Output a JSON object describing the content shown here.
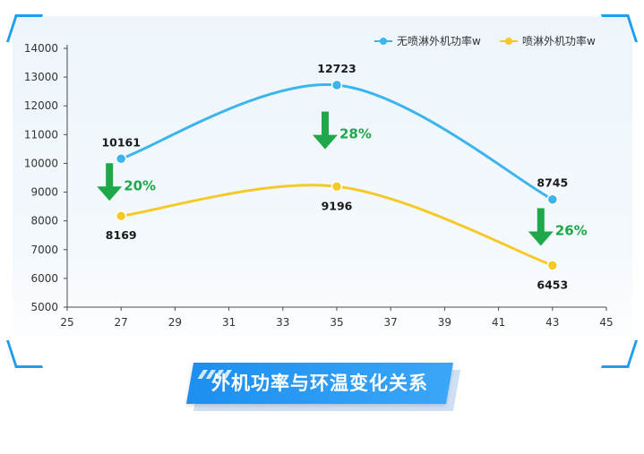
{
  "chart_data": {
    "type": "line",
    "title": "外机功率与环温变化关系",
    "xlabel": "",
    "ylabel": "",
    "xlim": [
      25,
      45
    ],
    "ylim": [
      5000,
      14000
    ],
    "x_ticks": [
      25,
      27,
      29,
      31,
      33,
      35,
      37,
      39,
      41,
      43,
      45
    ],
    "y_ticks": [
      5000,
      6000,
      7000,
      8000,
      9000,
      10000,
      11000,
      12000,
      13000,
      14000
    ],
    "grid": false,
    "legend_position": "top-right",
    "series": [
      {
        "name": "无喷淋外机功率w",
        "color": "#3cb4ec",
        "points": [
          {
            "x": 27,
            "y": 10161
          },
          {
            "x": 35,
            "y": 12723
          },
          {
            "x": 43,
            "y": 8745
          }
        ],
        "labels": [
          "10161",
          "12723",
          "8745"
        ]
      },
      {
        "name": "喷淋外机功率w",
        "color": "#f5c92a",
        "points": [
          {
            "x": 27,
            "y": 8169
          },
          {
            "x": 35,
            "y": 9196
          },
          {
            "x": 43,
            "y": 6453
          }
        ],
        "labels": [
          "8169",
          "9196",
          "6453"
        ]
      }
    ],
    "annotations": [
      {
        "x": 27,
        "text": "20%"
      },
      {
        "x": 35,
        "text": "28%"
      },
      {
        "x": 43,
        "text": "26%"
      }
    ]
  },
  "colors": {
    "axis": "#4a4a4a",
    "arrow": "#1fa84a",
    "banner": "#2b9cf3"
  },
  "banner": {
    "title": "外机功率与环温变化关系",
    "icon": "stripes-decoration"
  }
}
